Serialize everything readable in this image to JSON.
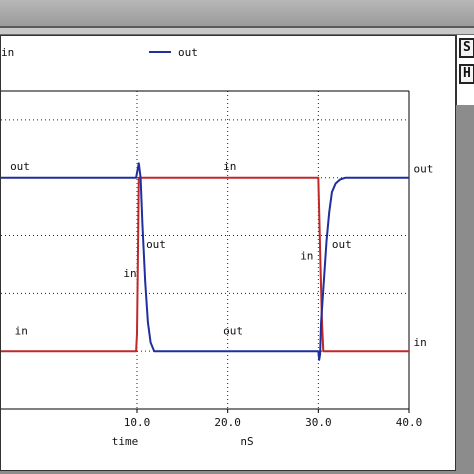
{
  "chart_data": {
    "type": "line",
    "xlabel": "time",
    "x_unit": "nS",
    "xlim": [
      -5,
      40
    ],
    "ylim": [
      -1,
      4.5
    ],
    "x_ticks": [
      10,
      20,
      30,
      40
    ],
    "x_tick_labels": [
      "10.0",
      "20.0",
      "30.0",
      "40.0"
    ],
    "grid": true,
    "legend_position": "top",
    "series": [
      {
        "name": "in",
        "color": "#c0282a",
        "x": [
          -5,
          9.9,
          10.0,
          10.1,
          10.2,
          30.0,
          30.1,
          30.25,
          30.4,
          30.55,
          40.0
        ],
        "y": [
          0,
          0,
          0.3,
          1.6,
          3.0,
          3.0,
          2.4,
          1.4,
          0.5,
          0.0,
          0.0
        ]
      },
      {
        "name": "out",
        "color": "#1f2f9e",
        "x": [
          -5,
          9.9,
          10.2,
          10.4,
          10.6,
          10.9,
          11.2,
          11.5,
          11.9,
          12.3,
          30.0,
          30.1,
          30.2,
          30.3,
          30.6,
          30.9,
          31.2,
          31.5,
          31.9,
          32.4,
          33.0,
          34.0,
          40.0
        ],
        "y": [
          3.0,
          3.0,
          3.25,
          3.0,
          2.2,
          1.2,
          0.5,
          0.15,
          0.0,
          0.0,
          0.0,
          -0.15,
          -0.05,
          0.5,
          1.2,
          1.9,
          2.4,
          2.75,
          2.9,
          2.97,
          3.0,
          3.0,
          3.0
        ]
      }
    ],
    "annotations": [
      {
        "text": "out",
        "x": -4,
        "y": 3.05,
        "color": "#111111"
      },
      {
        "text": "in",
        "x": 19.5,
        "y": 3.05,
        "color": "#111111"
      },
      {
        "text": "out",
        "x": 40.5,
        "y": 3.0,
        "color": "#111111"
      },
      {
        "text": "out",
        "x": 11.0,
        "y": 1.7,
        "color": "#111111"
      },
      {
        "text": "in",
        "x": 8.5,
        "y": 1.2,
        "color": "#111111"
      },
      {
        "text": "in",
        "x": -3.5,
        "y": 0.2,
        "color": "#111111"
      },
      {
        "text": "out",
        "x": 19.5,
        "y": 0.2,
        "color": "#111111"
      },
      {
        "text": "in",
        "x": 28.0,
        "y": 1.5,
        "color": "#111111"
      },
      {
        "text": "out",
        "x": 31.5,
        "y": 1.7,
        "color": "#111111"
      },
      {
        "text": "in",
        "x": 40.5,
        "y": 0.0,
        "color": "#111111"
      }
    ]
  },
  "side_panel": {
    "box1": "S",
    "box2": "H"
  }
}
